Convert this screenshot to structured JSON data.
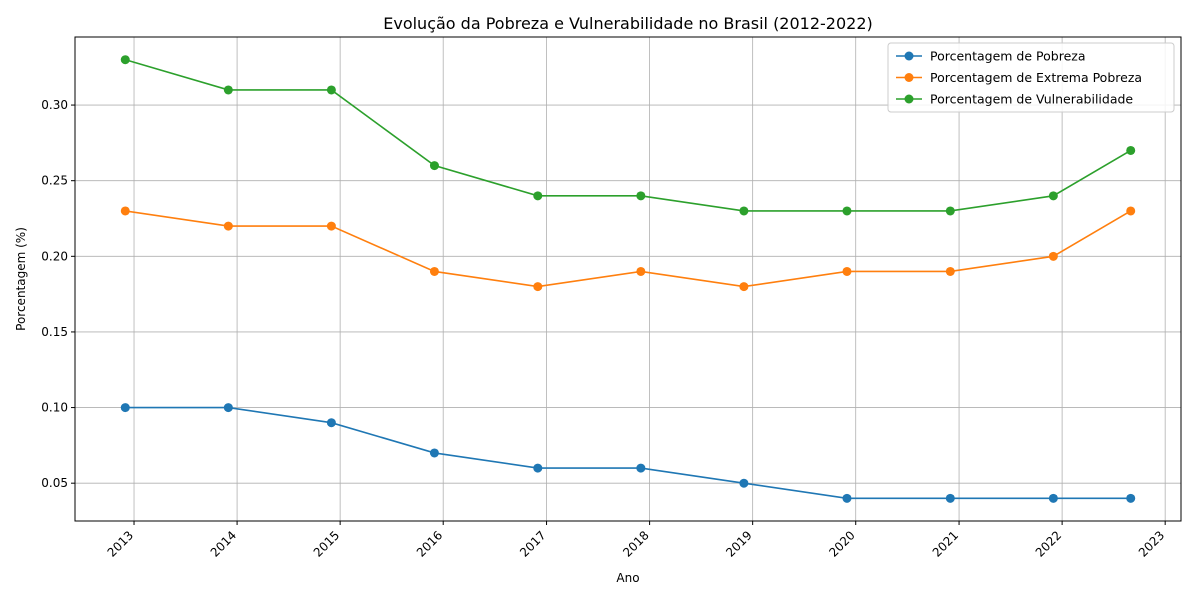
{
  "chart_data": {
    "type": "line",
    "title": "Evolução da Pobreza e Vulnerabilidade no Brasil (2012-2022)",
    "xlabel": "Ano",
    "ylabel": "Porcentagem (%)",
    "x": [
      "2012-12",
      "2013-12",
      "2014-12",
      "2015-12",
      "2016-12",
      "2017-12",
      "2018-12",
      "2019-12",
      "2020-12",
      "2021-12",
      "2022-09"
    ],
    "x_tick_labels": [
      "2013",
      "2014",
      "2015",
      "2016",
      "2017",
      "2018",
      "2019",
      "2020",
      "2021",
      "2022",
      "2023"
    ],
    "y_tick_labels": [
      "0.05",
      "0.10",
      "0.15",
      "0.20",
      "0.25",
      "0.30"
    ],
    "y_ticks": [
      0.05,
      0.1,
      0.15,
      0.2,
      0.25,
      0.3
    ],
    "ylim": [
      0.025,
      0.345
    ],
    "grid": true,
    "legend_position": "top-right",
    "series": [
      {
        "name": "Porcentagem de Pobreza",
        "color": "#1f77b4",
        "values": [
          0.1,
          0.1,
          0.09,
          0.07,
          0.06,
          0.06,
          0.05,
          0.04,
          0.04,
          0.04,
          0.04
        ]
      },
      {
        "name": "Porcentagem de Extrema Pobreza",
        "color": "#ff7f0e",
        "values": [
          0.23,
          0.22,
          0.22,
          0.19,
          0.18,
          0.19,
          0.18,
          0.19,
          0.19,
          0.2,
          0.23
        ]
      },
      {
        "name": "Porcentagem de Vulnerabilidade",
        "color": "#2ca02c",
        "values": [
          0.33,
          0.31,
          0.31,
          0.26,
          0.24,
          0.24,
          0.23,
          0.23,
          0.23,
          0.24,
          0.27
        ]
      }
    ]
  }
}
